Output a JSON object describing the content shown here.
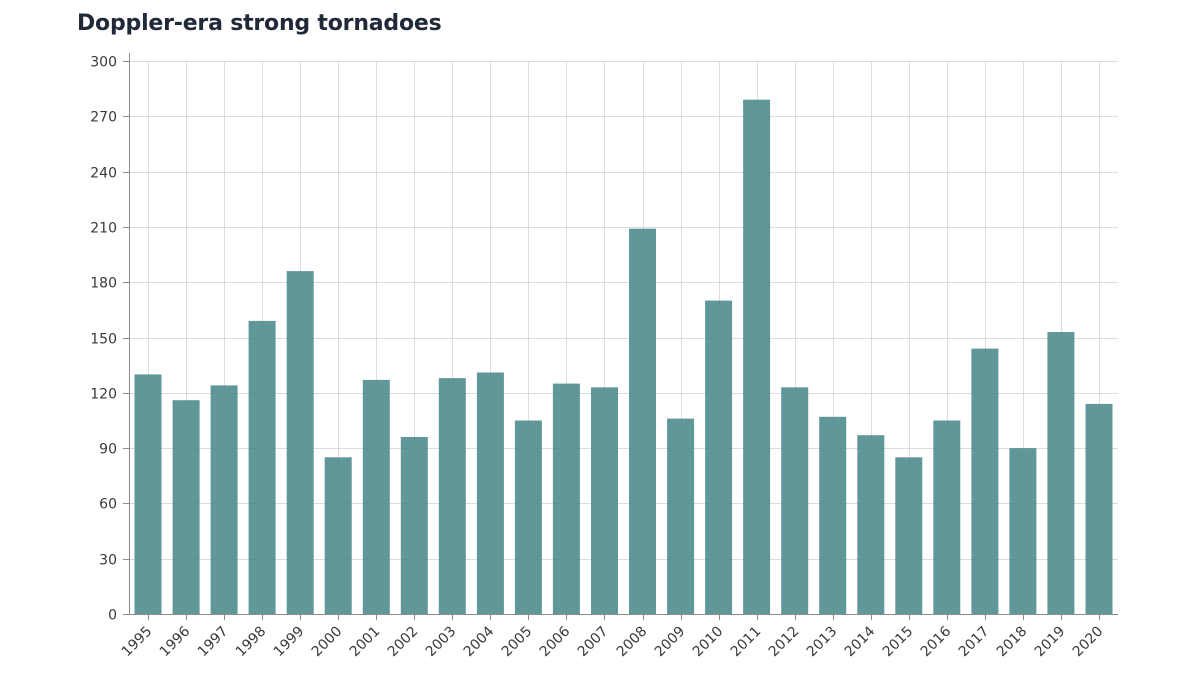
{
  "chart_data": {
    "type": "bar",
    "title": "Doppler-era strong tornadoes",
    "xlabel": "",
    "ylabel": "",
    "ylim": [
      0,
      300
    ],
    "yticks": [
      0,
      30,
      60,
      90,
      120,
      150,
      180,
      210,
      240,
      270,
      300
    ],
    "grid": true,
    "bar_color": "#4a8a8c",
    "categories": [
      "1995",
      "1996",
      "1997",
      "1998",
      "1999",
      "2000",
      "2001",
      "2002",
      "2003",
      "2004",
      "2005",
      "2006",
      "2007",
      "2008",
      "2009",
      "2010",
      "2011",
      "2012",
      "2013",
      "2014",
      "2015",
      "2016",
      "2017",
      "2018",
      "2019",
      "2020"
    ],
    "values": [
      130,
      116,
      124,
      159,
      186,
      85,
      127,
      96,
      128,
      131,
      105,
      125,
      123,
      209,
      106,
      170,
      279,
      123,
      107,
      97,
      85,
      105,
      144,
      90,
      153,
      114
    ]
  }
}
